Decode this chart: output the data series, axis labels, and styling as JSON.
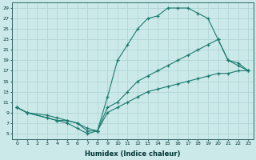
{
  "xlabel": "Humidex (Indice chaleur)",
  "xlim": [
    -0.5,
    23.5
  ],
  "ylim": [
    4,
    30
  ],
  "yticks": [
    5,
    7,
    9,
    11,
    13,
    15,
    17,
    19,
    21,
    23,
    25,
    27,
    29
  ],
  "xticks": [
    0,
    1,
    2,
    3,
    4,
    5,
    6,
    7,
    8,
    9,
    10,
    11,
    12,
    13,
    14,
    15,
    16,
    17,
    18,
    19,
    20,
    21,
    22,
    23
  ],
  "background_color": "#cce9e9",
  "grid_color": "#b0d4d4",
  "line_color": "#1a7a6e",
  "curves": [
    {
      "x": [
        0,
        1,
        3,
        4,
        5,
        6,
        7,
        8,
        9,
        10,
        11,
        12,
        13,
        14,
        15,
        16,
        17,
        18,
        19,
        20,
        21,
        22,
        23
      ],
      "y": [
        10,
        9,
        8,
        7.5,
        7,
        6,
        5,
        5.5,
        12,
        19,
        22,
        25,
        27,
        27.5,
        29,
        29,
        29,
        28,
        27,
        23,
        19,
        18,
        17
      ]
    },
    {
      "x": [
        0,
        1,
        3,
        4,
        5,
        6,
        7,
        8,
        9,
        10,
        11,
        12,
        13,
        14,
        15,
        16,
        17,
        18,
        19,
        20,
        21,
        22,
        23
      ],
      "y": [
        10,
        9,
        8,
        7.5,
        7.5,
        7,
        5.5,
        5.5,
        10,
        11,
        13,
        15,
        16,
        17,
        18,
        19,
        20,
        21,
        22,
        23,
        19,
        18.5,
        17
      ]
    },
    {
      "x": [
        0,
        1,
        3,
        4,
        5,
        6,
        7,
        8,
        9,
        10,
        11,
        12,
        13,
        14,
        15,
        16,
        17,
        18,
        19,
        20,
        21,
        22,
        23
      ],
      "y": [
        10,
        9,
        8.5,
        8,
        7.5,
        7,
        6,
        5.5,
        9,
        10,
        11,
        12,
        13,
        13.5,
        14,
        14.5,
        15,
        15.5,
        16,
        16.5,
        16.5,
        17,
        17
      ]
    }
  ]
}
